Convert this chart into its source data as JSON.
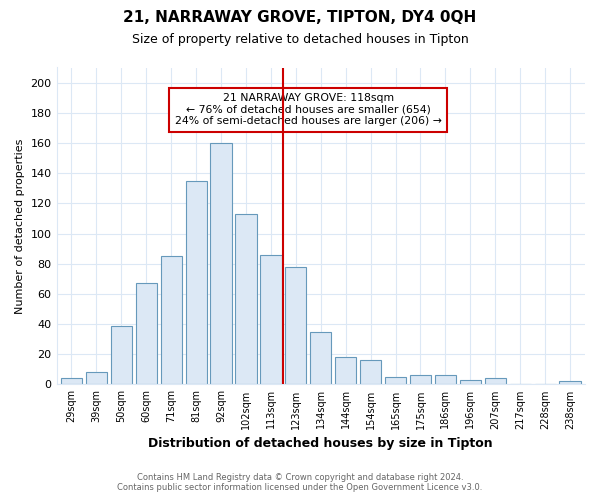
{
  "title": "21, NARRAWAY GROVE, TIPTON, DY4 0QH",
  "subtitle": "Size of property relative to detached houses in Tipton",
  "xlabel": "Distribution of detached houses by size in Tipton",
  "ylabel": "Number of detached properties",
  "bar_labels": [
    "29sqm",
    "39sqm",
    "50sqm",
    "60sqm",
    "71sqm",
    "81sqm",
    "92sqm",
    "102sqm",
    "113sqm",
    "123sqm",
    "134sqm",
    "144sqm",
    "154sqm",
    "165sqm",
    "175sqm",
    "186sqm",
    "196sqm",
    "207sqm",
    "217sqm",
    "228sqm",
    "238sqm"
  ],
  "bar_values": [
    4,
    8,
    39,
    67,
    85,
    135,
    160,
    113,
    86,
    78,
    35,
    18,
    16,
    5,
    6,
    6,
    3,
    4,
    0,
    0,
    2
  ],
  "bar_color": "#dce8f5",
  "bar_edgecolor": "#6699bb",
  "vline_color": "#cc0000",
  "annotation_title": "21 NARRAWAY GROVE: 118sqm",
  "annotation_line1": "← 76% of detached houses are smaller (654)",
  "annotation_line2": "24% of semi-detached houses are larger (206) →",
  "annotation_box_edgecolor": "#cc0000",
  "annotation_box_facecolor": "#ffffff",
  "ylim": [
    0,
    210
  ],
  "yticks": [
    0,
    20,
    40,
    60,
    80,
    100,
    120,
    140,
    160,
    180,
    200
  ],
  "footer1": "Contains HM Land Registry data © Crown copyright and database right 2024.",
  "footer2": "Contains public sector information licensed under the Open Government Licence v3.0.",
  "background_color": "#ffffff",
  "plot_background_color": "#ffffff",
  "grid_color": "#dce8f5"
}
